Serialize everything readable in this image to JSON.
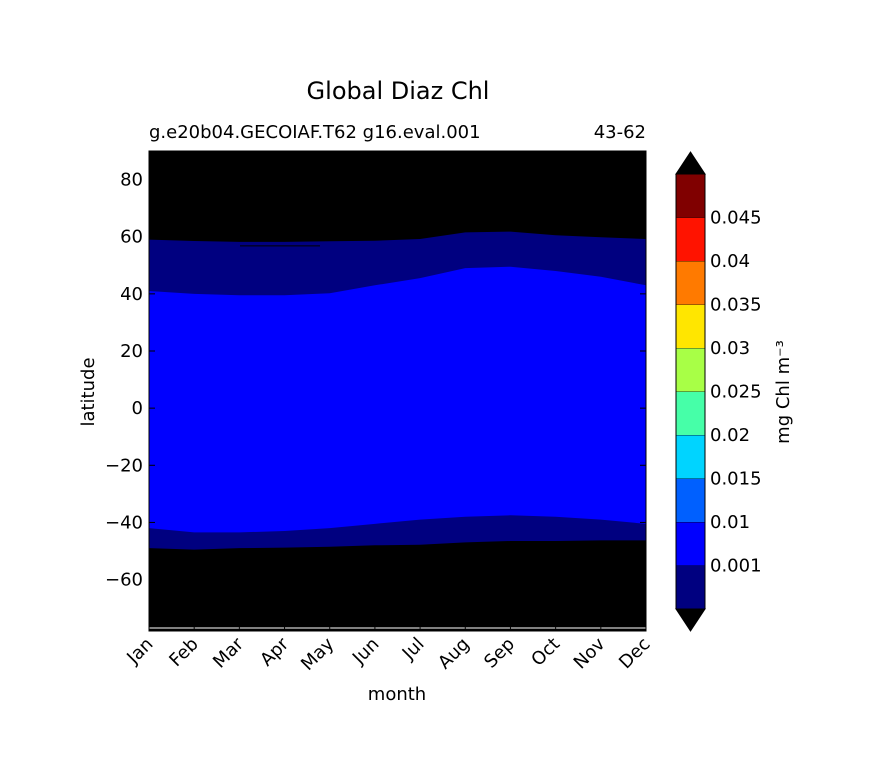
{
  "chart_data": {
    "type": "heatmap",
    "title": "Global Diaz Chl",
    "subtitle_left": "g.e20b04.GECOIAF.T62 g16.eval.001",
    "subtitle_right": "43-62",
    "xlabel": "month",
    "ylabel": "latitude",
    "x_ticks": [
      "Jan",
      "Feb",
      "Mar",
      "Apr",
      "May",
      "Jun",
      "Jul",
      "Aug",
      "Sep",
      "Oct",
      "Nov",
      "Dec"
    ],
    "ylim": [
      -78,
      90
    ],
    "y_ticks": [
      80,
      60,
      40,
      20,
      0,
      -20,
      -40,
      -60
    ],
    "y_tick_labels": [
      "80",
      "60",
      "40",
      "20",
      "0",
      "−20",
      "−40",
      "−60"
    ],
    "colorbar": {
      "label": "mg Chl m⁻³",
      "tick_labels": [
        "0.001",
        "0.01",
        "0.015",
        "0.02",
        "0.025",
        "0.03",
        "0.035",
        "0.04",
        "0.045"
      ],
      "colors": [
        "#000080",
        "#0000ff",
        "#0060ff",
        "#00d4ff",
        "#46ffa8",
        "#a8ff46",
        "#ffe600",
        "#ff7a00",
        "#ff1300",
        "#800000"
      ],
      "extend_colors": {
        "under": "#000000",
        "over": "#000000"
      }
    },
    "field_colors": {
      "below": "#000000",
      "low": "#000080",
      "mid": "#0000ff"
    },
    "series": [
      {
        "level": "0.001 contour (north)",
        "lat": [
          59,
          58.5,
          58.2,
          58.2,
          58.4,
          58.6,
          59.2,
          61.5,
          61.8,
          60.5,
          59.8,
          59.2
        ]
      },
      {
        "level": "0.01 contour (north)",
        "lat": [
          41,
          40,
          39.5,
          39.5,
          40.2,
          43,
          45.5,
          49,
          49.5,
          48,
          46,
          43
        ]
      },
      {
        "level": "0.01 contour (south)",
        "lat": [
          -42,
          -43.5,
          -43.5,
          -43,
          -42,
          -40.5,
          -39,
          -38,
          -37.5,
          -38,
          -39,
          -40.5
        ]
      },
      {
        "level": "0.001 contour (south)",
        "lat": [
          -49,
          -49.5,
          -49,
          -48.8,
          -48.5,
          -48,
          -47.8,
          -47,
          -46.5,
          -46.5,
          -46.3,
          -46.3
        ]
      }
    ]
  }
}
